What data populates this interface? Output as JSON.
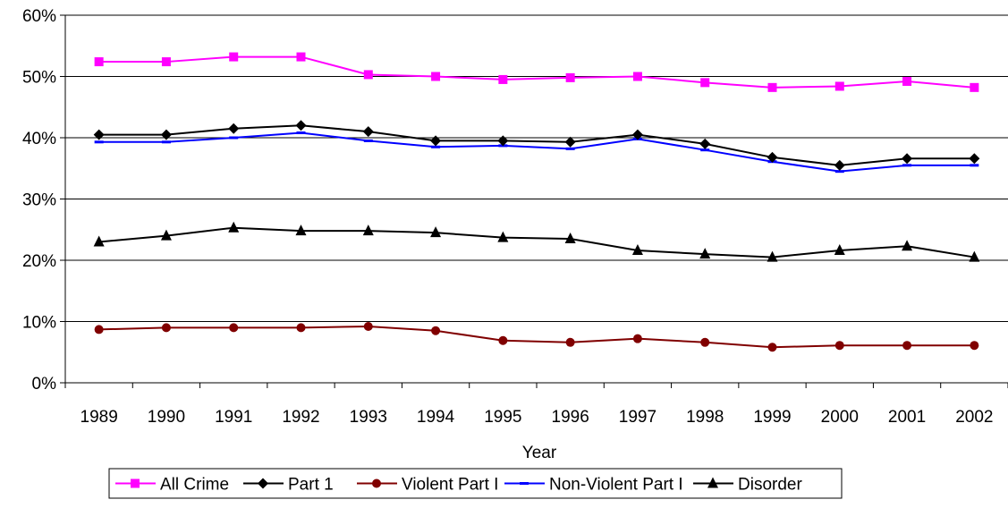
{
  "chart_data": {
    "type": "line",
    "title": "",
    "xlabel": "Year",
    "ylabel": "",
    "ylim": [
      0,
      60
    ],
    "y_ticks": [
      0,
      10,
      20,
      30,
      40,
      50,
      60
    ],
    "y_tick_labels": [
      "0%",
      "10%",
      "20%",
      "30%",
      "40%",
      "50%",
      "60%"
    ],
    "x": [
      "1989",
      "1990",
      "1991",
      "1992",
      "1993",
      "1994",
      "1995",
      "1996",
      "1997",
      "1998",
      "1999",
      "2000",
      "2001",
      "2002"
    ],
    "grid": "horizontal",
    "legend_position": "bottom",
    "series": [
      {
        "name": "All Crime",
        "color": "#ff00ff",
        "marker": "square",
        "values": [
          52.4,
          52.4,
          53.2,
          53.2,
          50.3,
          50.0,
          49.5,
          49.8,
          50.0,
          49.0,
          48.2,
          48.4,
          49.2,
          48.2
        ]
      },
      {
        "name": "Part 1",
        "color": "#000000",
        "marker": "diamond",
        "values": [
          40.5,
          40.5,
          41.5,
          42.0,
          41.0,
          39.5,
          39.5,
          39.3,
          40.5,
          39.0,
          36.8,
          35.5,
          36.6,
          36.6
        ]
      },
      {
        "name": "Violent Part I",
        "color": "#800000",
        "marker": "circle",
        "values": [
          8.7,
          9.0,
          9.0,
          9.0,
          9.2,
          8.5,
          6.9,
          6.6,
          7.2,
          6.6,
          5.8,
          6.1,
          6.1,
          6.1
        ]
      },
      {
        "name": "Non-Violent Part I",
        "color": "#0000ff",
        "marker": "dash",
        "values": [
          39.3,
          39.3,
          40.0,
          40.8,
          39.5,
          38.5,
          38.7,
          38.2,
          39.8,
          38.0,
          36.1,
          34.5,
          35.5,
          35.5
        ]
      },
      {
        "name": "Disorder",
        "color": "#000000",
        "marker": "triangle",
        "values": [
          23.0,
          24.0,
          25.3,
          24.8,
          24.8,
          24.5,
          23.7,
          23.5,
          21.6,
          21.0,
          20.5,
          21.6,
          22.3,
          20.5
        ]
      }
    ]
  }
}
